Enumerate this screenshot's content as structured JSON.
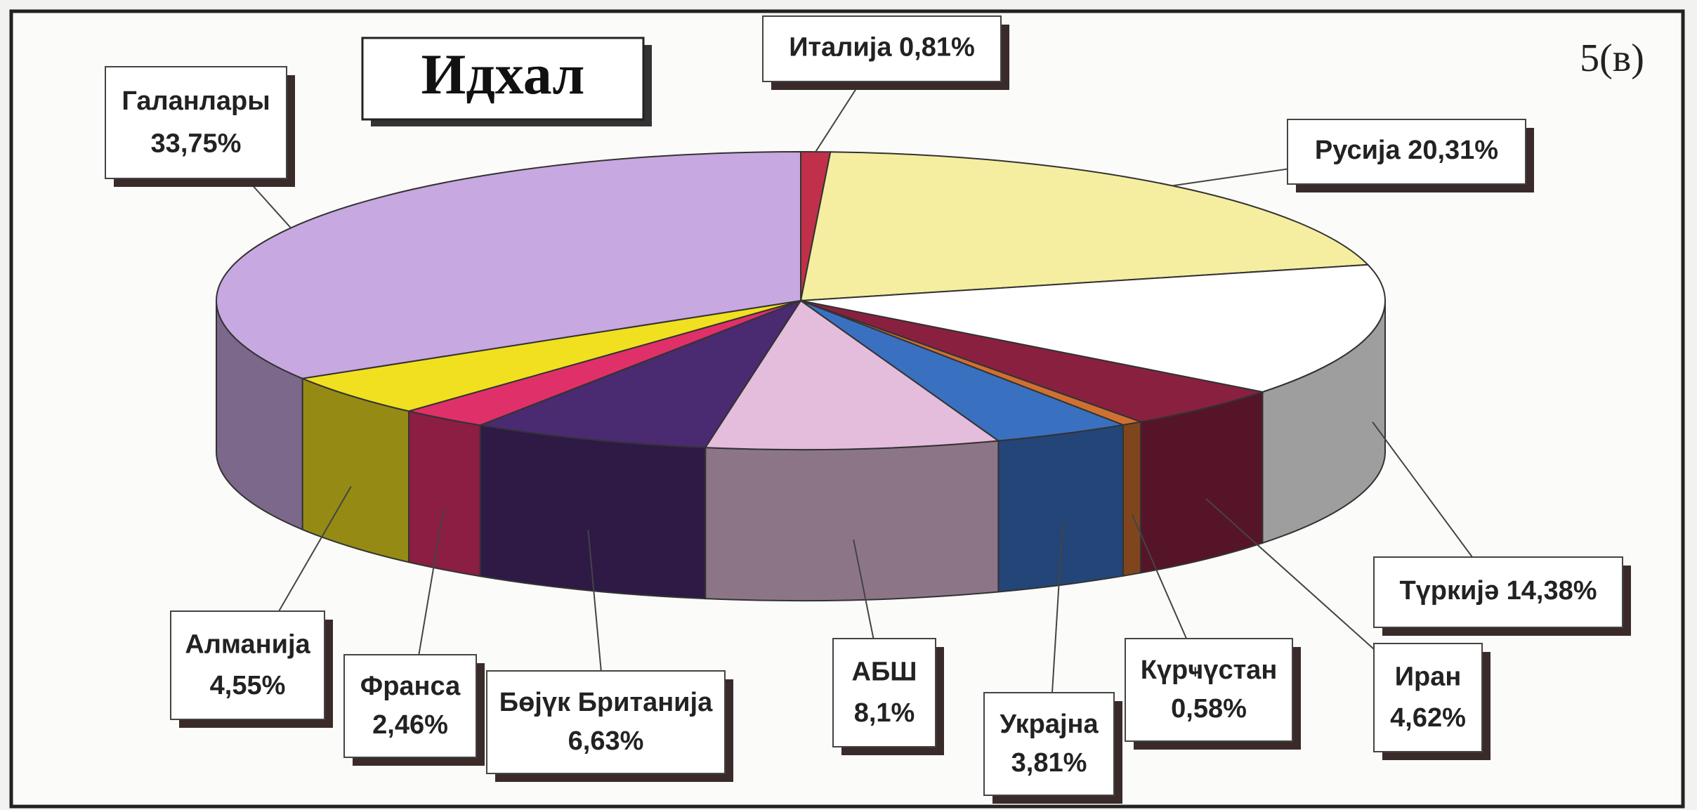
{
  "chart_data": {
    "type": "pie3d",
    "title": "Идхал",
    "annotation": "5(в)",
    "categories": [
      "Италија",
      "Русија",
      "Түркијә",
      "Иран",
      "Күрҹүстан",
      "Украјна",
      "АБШ",
      "Бөјүк Британија",
      "Франса",
      "Алманија",
      "Галанлары"
    ],
    "values": [
      0.81,
      20.31,
      14.38,
      4.62,
      0.58,
      3.81,
      8.1,
      6.63,
      2.46,
      4.55,
      33.75
    ],
    "value_labels": [
      "0,81%",
      "20,31%",
      "14,38%",
      "4,62%",
      "0,58%",
      "3,81%",
      "8,1%",
      "6,63%",
      "2,46%",
      "4,55%",
      "33,75%"
    ],
    "colors": [
      "#c0304a",
      "#f5eea0",
      "#ffffff",
      "#8a2040",
      "#d07030",
      "#3a70c0",
      "#e4bcdc",
      "#4a2a70",
      "#e0306a",
      "#f0e020",
      "#c8a8e0"
    ]
  }
}
